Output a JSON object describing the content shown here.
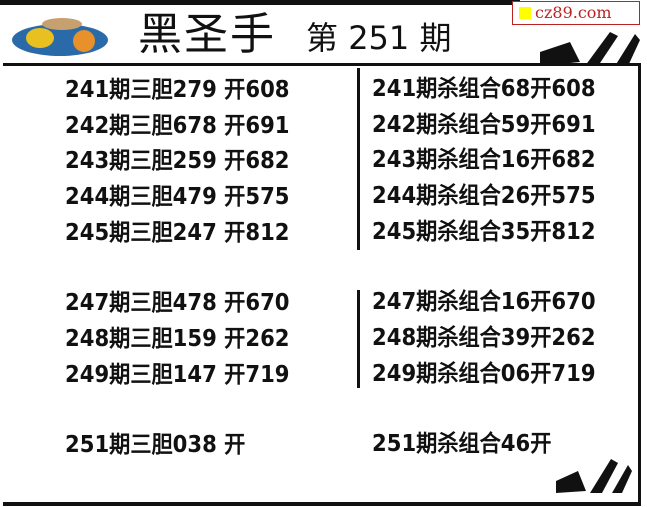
{
  "header": {
    "title": "黑圣手",
    "issue_prefix": "第",
    "issue_number": "251",
    "issue_suffix": "期",
    "watermark": "cz89.com"
  },
  "left_column": [
    "241期三胆279 开608",
    "242期三胆678 开691",
    "243期三胆259 开682",
    "244期三胆479 开575",
    "245期三胆247 开812",
    "247期三胆478 开670",
    "248期三胆159 开262",
    "249期三胆147 开719",
    "251期三胆038 开"
  ],
  "right_column": [
    "241期杀组合68开608",
    "242期杀组合59开691",
    "243期杀组合16开682",
    "244期杀组合26开575",
    "245期杀组合35开812",
    "247期杀组合16开670",
    "248期杀组合39开262",
    "249期杀组合06开719",
    "251期杀组合46开"
  ]
}
